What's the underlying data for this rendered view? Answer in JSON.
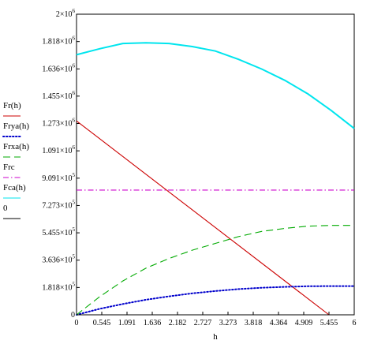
{
  "chart_data": {
    "type": "line",
    "xlabel": "h",
    "xlim": [
      0,
      6
    ],
    "ylim": [
      0,
      2000000
    ],
    "x_ticks": [
      "0",
      "0.545",
      "1.091",
      "1.636",
      "2.182",
      "2.727",
      "3.273",
      "3.818",
      "4.364",
      "4.909",
      "5.455",
      "6"
    ],
    "y_ticks": [
      {
        "mant": "0",
        "exp": ""
      },
      {
        "mant": "1.818×10",
        "exp": "5"
      },
      {
        "mant": "3.636×10",
        "exp": "5"
      },
      {
        "mant": "5.455×10",
        "exp": "5"
      },
      {
        "mant": "7.273×10",
        "exp": "5"
      },
      {
        "mant": "9.091×10",
        "exp": "5"
      },
      {
        "mant": "1.091×10",
        "exp": "6"
      },
      {
        "mant": "1.273×10",
        "exp": "6"
      },
      {
        "mant": "1.455×10",
        "exp": "6"
      },
      {
        "mant": "1.636×10",
        "exp": "6"
      },
      {
        "mant": "1.818×10",
        "exp": "6"
      },
      {
        "mant": "2×10",
        "exp": "6"
      }
    ],
    "y_tick_values": [
      0,
      181800,
      363600,
      545500,
      727300,
      909100,
      1091000,
      1273000,
      1455000,
      1636000,
      1818000,
      2000000
    ],
    "grid": false,
    "legend_position": "left",
    "series": [
      {
        "name": "Fr(h)",
        "color": "#cc0000",
        "style": "solid",
        "x": [
          0,
          5.455
        ],
        "y": [
          1290000,
          0
        ]
      },
      {
        "name": "Frya(h)",
        "color": "#0000cc",
        "style": "dotted",
        "x": [
          0,
          0.5,
          1,
          1.5,
          2,
          2.5,
          3,
          3.5,
          4,
          4.5,
          5,
          5.5,
          6
        ],
        "y": [
          0,
          40000,
          72000,
          100000,
          123000,
          143000,
          158000,
          171000,
          180000,
          186000,
          190000,
          191000,
          191000
        ]
      },
      {
        "name": "Frxa(h)",
        "color": "#00aa00",
        "style": "dashed",
        "x": [
          0,
          0.5,
          1,
          1.5,
          2,
          2.5,
          3,
          3.5,
          4,
          4.5,
          5,
          5.5,
          6
        ],
        "y": [
          0,
          120000,
          225000,
          310000,
          375000,
          430000,
          475000,
          520000,
          555000,
          575000,
          590000,
          595000,
          595000
        ]
      },
      {
        "name": "Frc",
        "color": "#cc00cc",
        "style": "dashdot",
        "x": [
          0,
          6
        ],
        "y": [
          830000,
          830000
        ]
      },
      {
        "name": "Fca(h)",
        "color": "#00e5ee",
        "style": "solid",
        "x": [
          0,
          0.5,
          1,
          1.5,
          2,
          2.5,
          3,
          3.5,
          4,
          4.5,
          5,
          5.5,
          6
        ],
        "y": [
          1730000,
          1770000,
          1805000,
          1810000,
          1805000,
          1785000,
          1755000,
          1700000,
          1635000,
          1560000,
          1470000,
          1360000,
          1240000
        ]
      },
      {
        "name": "0",
        "color": "#000000",
        "style": "solid",
        "x": [
          0,
          6
        ],
        "y": [
          0,
          0
        ]
      }
    ]
  }
}
